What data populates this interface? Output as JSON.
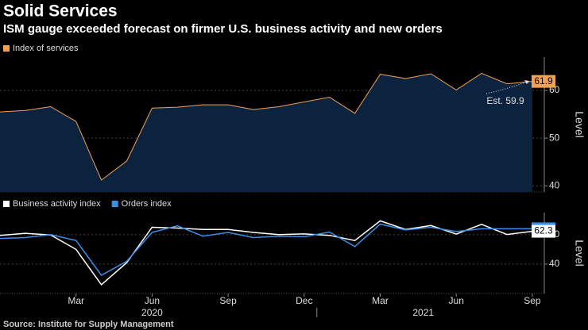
{
  "title": "Solid Services",
  "subtitle": "ISM gauge exceeded forecast on firmer U.S. business activity and new orders",
  "source": "Source: Institute for Supply Management",
  "chart_data": [
    {
      "type": "area",
      "series": [
        {
          "name": "Index of services",
          "color": "#f2a155",
          "values": [
            55.5,
            55.8,
            56.6,
            53.5,
            41.2,
            45.2,
            56.3,
            56.5,
            57.0,
            57.0,
            56.0,
            56.6,
            57.6,
            58.6,
            55.2,
            63.4,
            62.5,
            63.5,
            60.1,
            63.6,
            61.4,
            61.9
          ]
        }
      ],
      "ylim": [
        38.7,
        67
      ],
      "yticks": [
        40,
        50,
        60
      ],
      "y_label": "Level",
      "annotation": "Est. 59.9"
    },
    {
      "type": "line",
      "categories": [
        null,
        null,
        null,
        "Mar",
        null,
        null,
        "Jun",
        null,
        null,
        "Sep",
        null,
        null,
        "Dec",
        null,
        null,
        "Mar",
        null,
        null,
        "Jun",
        null,
        null,
        "Sep"
      ],
      "years": [
        "2020",
        "2021"
      ],
      "series": [
        {
          "name": "Business activity index",
          "color": "#ffffff",
          "values": [
            59.5,
            60.9,
            59.8,
            50.0,
            26.0,
            41.0,
            65.0,
            64.5,
            63.5,
            63.5,
            61.5,
            60.0,
            60.5,
            59.5,
            56.0,
            69.4,
            63.5,
            66.2,
            60.4,
            67.0,
            60.1,
            62.3
          ]
        },
        {
          "name": "Orders index",
          "color": "#3a8fe8",
          "values": [
            57.4,
            58.0,
            60.0,
            56.0,
            32.4,
            41.9,
            61.6,
            66.0,
            59.0,
            61.5,
            58.0,
            59.0,
            58.6,
            61.8,
            51.9,
            67.2,
            63.2,
            65.0,
            62.1,
            64.0,
            64.0,
            64.0
          ]
        }
      ],
      "ylim": [
        20,
        75
      ],
      "yticks": [
        40,
        60
      ],
      "y_label": "Level"
    }
  ]
}
